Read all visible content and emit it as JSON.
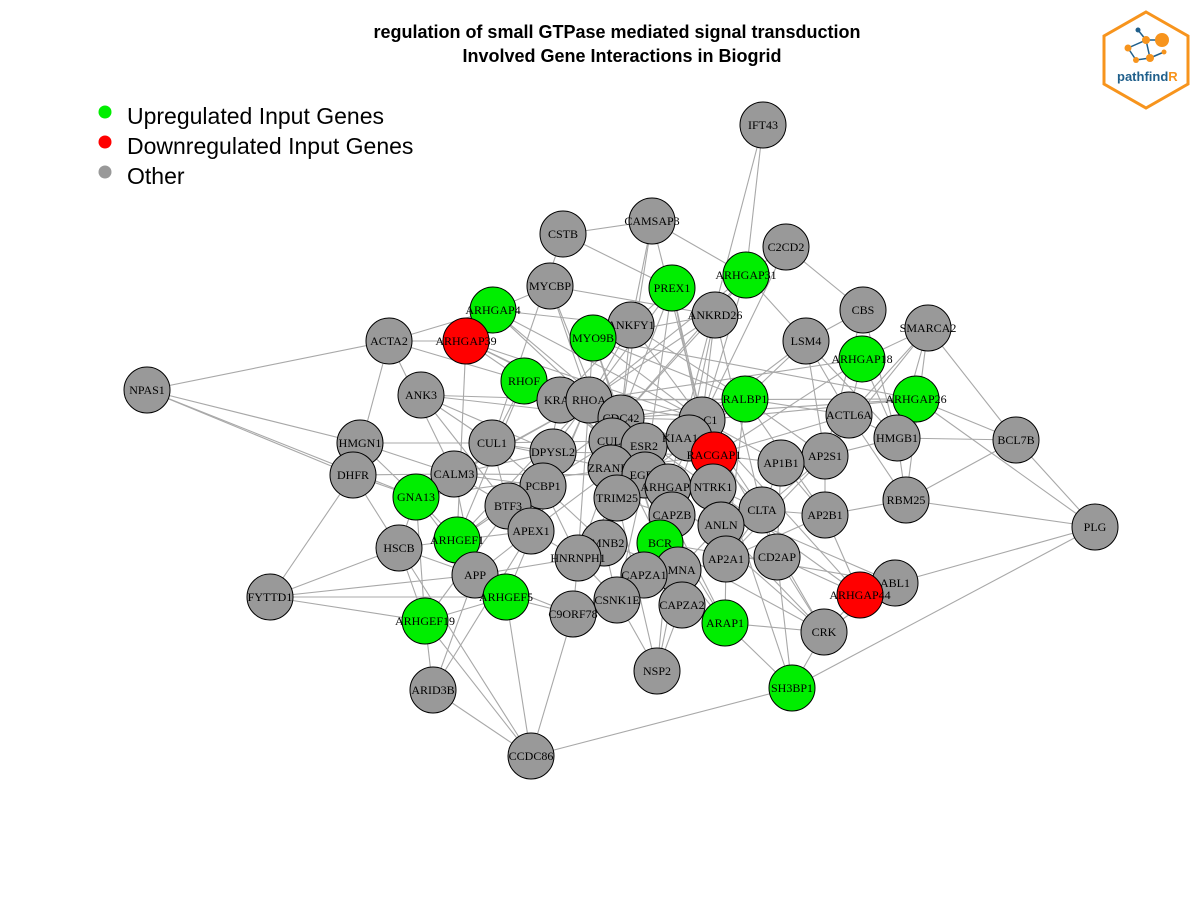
{
  "title": {
    "line1": "regulation of small GTPase mediated signal transduction",
    "line2": "Involved Gene Interactions in Biogrid"
  },
  "legend": [
    {
      "label": "Upregulated Input Genes",
      "color": "#00ee00"
    },
    {
      "label": "Downregulated Input Genes",
      "color": "#ff0000"
    },
    {
      "label": "Other",
      "color": "#999999"
    }
  ],
  "logo": {
    "text_a": "pathfind",
    "text_b": "R",
    "color_a": "#1f5f8b",
    "color_b": "#f7941d"
  },
  "colors": {
    "up": "#00ee00",
    "down": "#ff0000",
    "other": "#999999",
    "edge": "#a8a8a8"
  },
  "nodes": [
    {
      "id": "IFT43",
      "status": "other"
    },
    {
      "id": "CAMSAP3",
      "status": "other"
    },
    {
      "id": "CSTB",
      "status": "other"
    },
    {
      "id": "C2CD2",
      "status": "other"
    },
    {
      "id": "ARHGAP31",
      "status": "up"
    },
    {
      "id": "PREX1",
      "status": "up"
    },
    {
      "id": "MYCBP",
      "status": "other"
    },
    {
      "id": "ARHGAP4",
      "status": "up"
    },
    {
      "id": "CBS",
      "status": "other"
    },
    {
      "id": "SMARCA2",
      "status": "other"
    },
    {
      "id": "ANKFY1",
      "status": "other"
    },
    {
      "id": "ANKRD26",
      "status": "other"
    },
    {
      "id": "ACTA2",
      "status": "other"
    },
    {
      "id": "ARHGAP39",
      "status": "down"
    },
    {
      "id": "MYO9B",
      "status": "up"
    },
    {
      "id": "LSM4",
      "status": "other"
    },
    {
      "id": "ARHGAP18",
      "status": "up"
    },
    {
      "id": "NPAS1",
      "status": "other"
    },
    {
      "id": "RHOF",
      "status": "up"
    },
    {
      "id": "ANK3",
      "status": "other"
    },
    {
      "id": "KRAS",
      "status": "other"
    },
    {
      "id": "RHOA",
      "status": "other"
    },
    {
      "id": "RALBP1",
      "status": "up"
    },
    {
      "id": "ARHGAP26",
      "status": "up"
    },
    {
      "id": "ACTL6A",
      "status": "other"
    },
    {
      "id": "CDC42",
      "status": "other"
    },
    {
      "id": "RAC1",
      "status": "other"
    },
    {
      "id": "HMGN1",
      "status": "other"
    },
    {
      "id": "CUL1",
      "status": "other"
    },
    {
      "id": "CUL3",
      "status": "other"
    },
    {
      "id": "ESR2",
      "status": "other"
    },
    {
      "id": "KIAA1429",
      "status": "other"
    },
    {
      "id": "HMGB1",
      "status": "other"
    },
    {
      "id": "BCL7B",
      "status": "other"
    },
    {
      "id": "DPYSL2",
      "status": "other"
    },
    {
      "id": "RACGAP1",
      "status": "down"
    },
    {
      "id": "AP2S1",
      "status": "other"
    },
    {
      "id": "AP1B1",
      "status": "other"
    },
    {
      "id": "DHFR",
      "status": "other"
    },
    {
      "id": "CALM3",
      "status": "other"
    },
    {
      "id": "ZRANB1",
      "status": "other"
    },
    {
      "id": "EGFR",
      "status": "other"
    },
    {
      "id": "PCBP1",
      "status": "other"
    },
    {
      "id": "ARHGAP1",
      "status": "other"
    },
    {
      "id": "NTRK1",
      "status": "other"
    },
    {
      "id": "GNA13",
      "status": "up"
    },
    {
      "id": "TRIM25",
      "status": "other"
    },
    {
      "id": "BTF3",
      "status": "other"
    },
    {
      "id": "RBM25",
      "status": "other"
    },
    {
      "id": "CLTA",
      "status": "other"
    },
    {
      "id": "AP2B1",
      "status": "other"
    },
    {
      "id": "PLG",
      "status": "other"
    },
    {
      "id": "CAPZB",
      "status": "other"
    },
    {
      "id": "APEX1",
      "status": "other"
    },
    {
      "id": "ARHGEF1",
      "status": "up"
    },
    {
      "id": "ANLN",
      "status": "other"
    },
    {
      "id": "LMNB2",
      "status": "other"
    },
    {
      "id": "HSCB",
      "status": "other"
    },
    {
      "id": "BCR",
      "status": "up"
    },
    {
      "id": "HNRNPH1",
      "status": "other"
    },
    {
      "id": "AP2A1",
      "status": "other"
    },
    {
      "id": "CD2AP",
      "status": "other"
    },
    {
      "id": "APP",
      "status": "other"
    },
    {
      "id": "LMNA",
      "status": "other"
    },
    {
      "id": "CAPZA1",
      "status": "other"
    },
    {
      "id": "ABL1",
      "status": "other"
    },
    {
      "id": "ARHGAP44",
      "status": "down"
    },
    {
      "id": "FYTTD1",
      "status": "other"
    },
    {
      "id": "ARHGEF5",
      "status": "up"
    },
    {
      "id": "CSNK1E",
      "status": "other"
    },
    {
      "id": "C9ORF78",
      "status": "other"
    },
    {
      "id": "CAPZA2",
      "status": "other"
    },
    {
      "id": "ARHGEF19",
      "status": "up"
    },
    {
      "id": "ARAP1",
      "status": "up"
    },
    {
      "id": "CRK",
      "status": "other"
    },
    {
      "id": "NSP2",
      "status": "other"
    },
    {
      "id": "SH3BP1",
      "status": "up"
    },
    {
      "id": "ARID3B",
      "status": "other"
    },
    {
      "id": "CCDC86",
      "status": "other"
    }
  ]
}
